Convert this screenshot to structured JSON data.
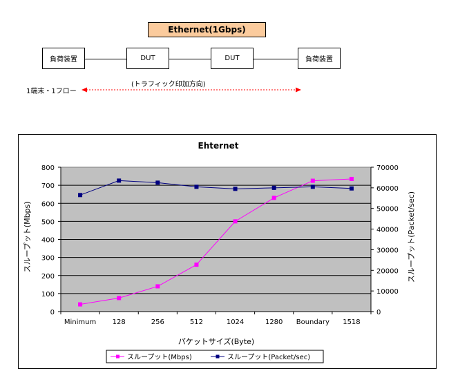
{
  "diagram": {
    "title": "Ethernet(1Gbps)",
    "nodes": [
      "負荷装置",
      "DUT",
      "DUT",
      "負荷装置"
    ],
    "left_label": "1端末・1フロー",
    "arrow_label": "(トラフィック印加方向)"
  },
  "chart_data": {
    "type": "line",
    "title": "Ehternet",
    "categories": [
      "Minimum",
      "128",
      "256",
      "512",
      "1024",
      "1280",
      "Boundary",
      "1518"
    ],
    "xlabel": "パケットサイズ(Byte)",
    "ylabel": "スループット(Mbps)",
    "y2label": "スループット(Packet/sec)",
    "ylim": [
      0,
      800
    ],
    "y2lim": [
      0,
      70000
    ],
    "yticks": [
      "0",
      "100",
      "200",
      "300",
      "400",
      "500",
      "600",
      "700",
      "800"
    ],
    "y2ticks": [
      "0",
      "10000",
      "20000",
      "30000",
      "40000",
      "50000",
      "60000",
      "70000"
    ],
    "grid": true,
    "plot_background": "#c0c0c0",
    "legend_position": "bottom",
    "series": [
      {
        "name": "スループット(Mbps)",
        "axis": "left",
        "color": "#ff00ff",
        "marker": "square",
        "values": [
          40,
          75,
          140,
          260,
          500,
          630,
          725,
          735
        ]
      },
      {
        "name": "スループット(Packet/sec)",
        "axis": "right",
        "color": "#000080",
        "marker": "square",
        "values": [
          56500,
          63500,
          62500,
          60500,
          59500,
          60000,
          60500,
          59700
        ]
      }
    ]
  }
}
